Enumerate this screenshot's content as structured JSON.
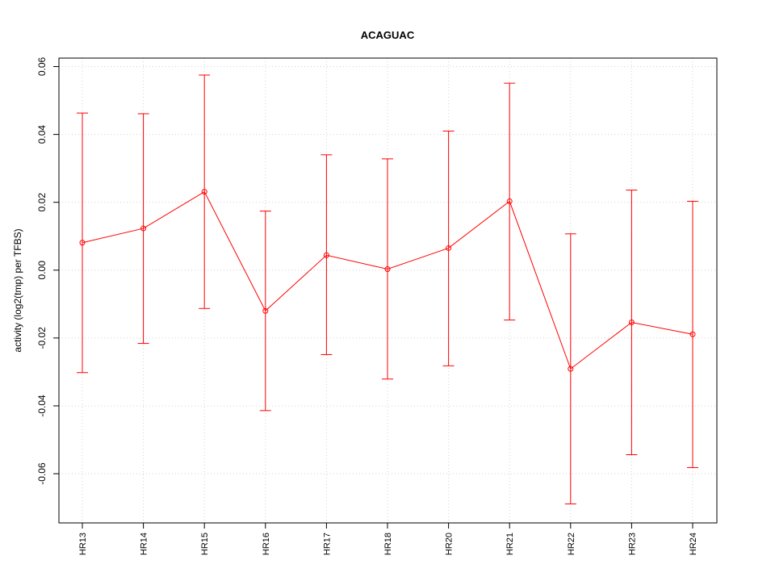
{
  "chart_data": {
    "type": "line",
    "title": "ACAGUAC",
    "xlabel": "",
    "ylabel": "activity (log2(tmp) per TFBS)",
    "categories": [
      "HR13",
      "HR14",
      "HR15",
      "HR16",
      "HR17",
      "HR18",
      "HR20",
      "HR21",
      "HR22",
      "HR23",
      "HR24"
    ],
    "series": [
      {
        "values": [
          0.0081,
          0.0123,
          0.0231,
          -0.012,
          0.0044,
          0.0003,
          0.0065,
          0.0203,
          -0.0291,
          -0.0154,
          -0.0189
        ],
        "upper": [
          0.0463,
          0.0461,
          0.0575,
          0.0174,
          0.034,
          0.0328,
          0.041,
          0.0551,
          0.0107,
          0.0236,
          0.0203
        ],
        "lower": [
          -0.0302,
          -0.0216,
          -0.0113,
          -0.0414,
          -0.0249,
          -0.0321,
          -0.0282,
          -0.0147,
          -0.0689,
          -0.0544,
          -0.0582
        ]
      }
    ],
    "yticks": [
      -0.06,
      -0.04,
      -0.02,
      0.0,
      0.02,
      0.04,
      0.06
    ],
    "ytick_labels": [
      "-0.06",
      "-0.04",
      "-0.02",
      "0.00",
      "0.02",
      "0.04",
      "0.06"
    ],
    "ylim": [
      -0.0745,
      0.0625
    ],
    "grid": true,
    "colors": {
      "series": "#ff0000",
      "grid": "#d3d3d3",
      "axis": "#000000"
    }
  }
}
